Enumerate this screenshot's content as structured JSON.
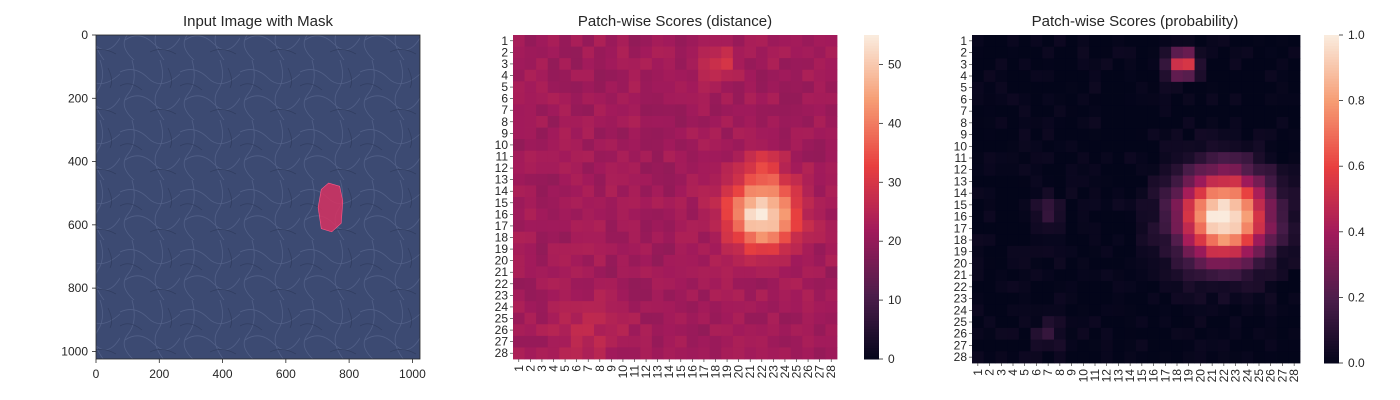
{
  "figure": {
    "colors": {
      "leather": "#3c4a72",
      "mask": "#e03060",
      "cmap_stops": [
        "#03051a",
        "#4c1d4b",
        "#a11a5b",
        "#e83f3f",
        "#f69c73",
        "#faebdd"
      ]
    }
  },
  "chart_data": [
    {
      "type": "image",
      "title": "Input Image with Mask",
      "xlim": [
        0,
        1024
      ],
      "ylim": [
        1024,
        0
      ],
      "xticks": [
        "0",
        "200",
        "400",
        "600",
        "800",
        "1000"
      ],
      "yticks": [
        "0",
        "200",
        "400",
        "600",
        "800",
        "1000"
      ],
      "xtick_values": [
        0,
        200,
        400,
        600,
        800,
        1000
      ],
      "ytick_values": [
        0,
        200,
        400,
        600,
        800,
        1000
      ],
      "mask_polygon": [
        [
          735,
          468
        ],
        [
          770,
          478
        ],
        [
          780,
          525
        ],
        [
          775,
          595
        ],
        [
          745,
          622
        ],
        [
          712,
          612
        ],
        [
          702,
          545
        ],
        [
          712,
          488
        ]
      ]
    },
    {
      "type": "heatmap",
      "title": "Patch-wise Scores (distance)",
      "rows": 28,
      "cols": 28,
      "vmin": 0,
      "vmax": 55,
      "colorbar_ticks": [
        "0",
        "10",
        "20",
        "30",
        "40",
        "50"
      ],
      "colorbar_tick_values": [
        0,
        10,
        20,
        30,
        40,
        50
      ],
      "row_labels": [
        "1",
        "2",
        "3",
        "4",
        "5",
        "6",
        "7",
        "8",
        "9",
        "10",
        "11",
        "12",
        "13",
        "14",
        "15",
        "16",
        "17",
        "18",
        "19",
        "20",
        "21",
        "22",
        "23",
        "24",
        "25",
        "26",
        "27",
        "28"
      ],
      "col_labels": [
        "1",
        "2",
        "3",
        "4",
        "5",
        "6",
        "7",
        "8",
        "9",
        "10",
        "11",
        "12",
        "13",
        "14",
        "15",
        "16",
        "17",
        "18",
        "19",
        "20",
        "21",
        "22",
        "23",
        "24",
        "25",
        "26",
        "27",
        "28"
      ],
      "base": 22,
      "blobs": [
        {
          "row": 16,
          "col": 22,
          "amp": 33,
          "sigma": 2.0
        },
        {
          "row": 12,
          "col": 22,
          "amp": 8,
          "sigma": 1.2
        },
        {
          "row": 3,
          "col": 18.5,
          "amp": 8,
          "sigma": 1.0
        },
        {
          "row": 26,
          "col": 7,
          "amp": 4,
          "sigma": 2.0
        }
      ]
    },
    {
      "type": "heatmap",
      "title": "Patch-wise Scores (probability)",
      "rows": 28,
      "cols": 28,
      "vmin": 0.0,
      "vmax": 1.0,
      "colorbar_ticks": [
        "0.0",
        "0.2",
        "0.4",
        "0.6",
        "0.8",
        "1.0"
      ],
      "colorbar_tick_values": [
        0.0,
        0.2,
        0.4,
        0.6,
        0.8,
        1.0
      ],
      "row_labels": [
        "1",
        "2",
        "3",
        "4",
        "5",
        "6",
        "7",
        "8",
        "9",
        "10",
        "11",
        "12",
        "13",
        "14",
        "15",
        "16",
        "17",
        "18",
        "19",
        "20",
        "21",
        "22",
        "23",
        "24",
        "25",
        "26",
        "27",
        "28"
      ],
      "col_labels": [
        "1",
        "2",
        "3",
        "4",
        "5",
        "6",
        "7",
        "8",
        "9",
        "10",
        "11",
        "12",
        "13",
        "14",
        "15",
        "16",
        "17",
        "18",
        "19",
        "20",
        "21",
        "22",
        "23",
        "24",
        "25",
        "26",
        "27",
        "28"
      ],
      "base": 0.0,
      "blobs": [
        {
          "row": 16,
          "col": 22,
          "amp": 1.05,
          "sigma": 2.6
        },
        {
          "row": 3,
          "col": 18.5,
          "amp": 0.65,
          "sigma": 0.8
        },
        {
          "row": 15.5,
          "col": 7,
          "amp": 0.15,
          "sigma": 0.8
        },
        {
          "row": 26,
          "col": 7,
          "amp": 0.12,
          "sigma": 0.9
        }
      ]
    }
  ]
}
